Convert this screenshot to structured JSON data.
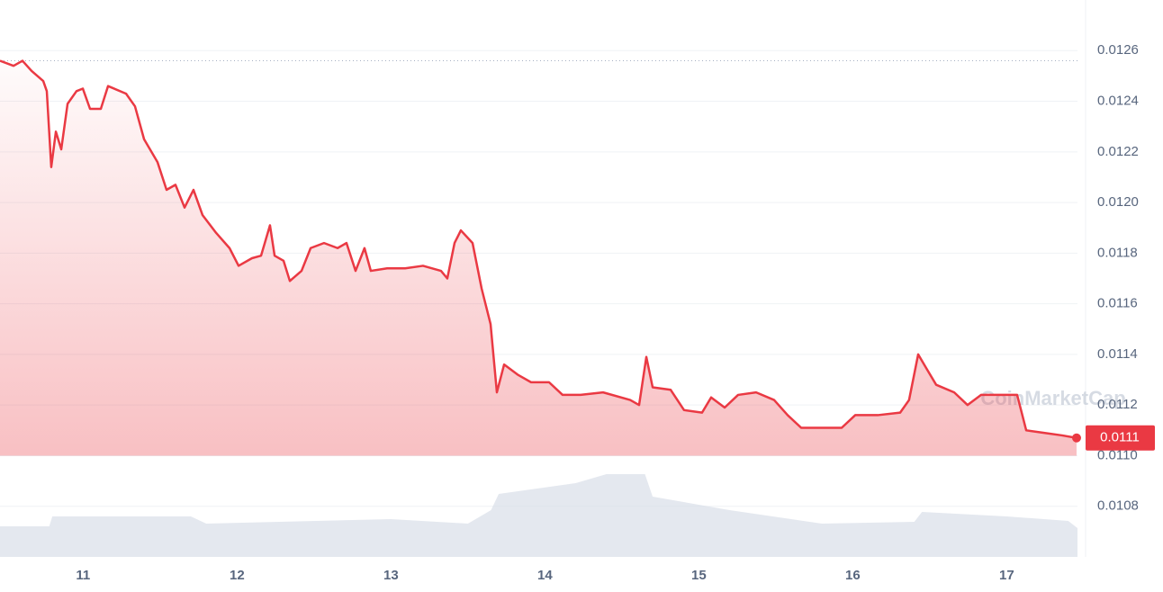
{
  "chart_data": {
    "type": "line",
    "watermark": "CoinMarketCap",
    "xlim": [
      10.46,
      17.46
    ],
    "xticks": [
      11,
      12,
      13,
      14,
      15,
      16,
      17
    ],
    "ylim": [
      0.0106,
      0.0128
    ],
    "yticks": [
      0.0108,
      {
        "value": 0.011,
        "label": "0.0110"
      },
      0.0112,
      0.0114,
      0.0116,
      0.0118,
      {
        "value": 0.012,
        "label": "0.0120"
      },
      0.0122,
      0.0124,
      0.0126
    ],
    "grid": true,
    "series": [
      {
        "name": "Price",
        "color": "#ea3943",
        "x": [
          10.46,
          10.548,
          10.606,
          10.665,
          10.741,
          10.764,
          10.793,
          10.823,
          10.858,
          10.899,
          10.957,
          10.998,
          11.045,
          11.115,
          11.162,
          11.279,
          11.337,
          11.396,
          11.483,
          11.542,
          11.6,
          11.659,
          11.717,
          11.776,
          11.864,
          11.951,
          12.01,
          12.097,
          12.156,
          12.214,
          12.244,
          12.302,
          12.343,
          12.419,
          12.478,
          12.565,
          12.653,
          12.711,
          12.77,
          12.828,
          12.869,
          12.975,
          13.092,
          13.208,
          13.325,
          13.366,
          13.413,
          13.454,
          13.53,
          13.589,
          13.647,
          13.688,
          13.735,
          13.823,
          13.91,
          14.027,
          14.115,
          14.232,
          14.378,
          14.554,
          14.612,
          14.659,
          14.7,
          14.817,
          14.904,
          15.021,
          15.08,
          15.168,
          15.255,
          15.372,
          15.489,
          15.577,
          15.665,
          15.782,
          15.928,
          16.016,
          16.162,
          16.308,
          16.366,
          16.425,
          16.483,
          16.542,
          16.659,
          16.746,
          16.834,
          16.951,
          17.068,
          17.127,
          17.243,
          17.36,
          17.454
        ],
        "values": [
          0.01256,
          0.01254,
          0.01256,
          0.01252,
          0.01248,
          0.01244,
          0.01214,
          0.01228,
          0.01221,
          0.01239,
          0.01244,
          0.01245,
          0.01237,
          0.01237,
          0.01246,
          0.01243,
          0.01238,
          0.01225,
          0.01216,
          0.01205,
          0.01207,
          0.01198,
          0.01205,
          0.01195,
          0.01188,
          0.01182,
          0.01175,
          0.01178,
          0.01179,
          0.01191,
          0.01179,
          0.01177,
          0.01169,
          0.01173,
          0.01182,
          0.01184,
          0.01182,
          0.01184,
          0.01173,
          0.01182,
          0.01173,
          0.01174,
          0.01174,
          0.01175,
          0.01173,
          0.0117,
          0.01184,
          0.01189,
          0.01184,
          0.01166,
          0.01152,
          0.01125,
          0.01136,
          0.01132,
          0.01129,
          0.01129,
          0.01124,
          0.01124,
          0.01125,
          0.01122,
          0.0112,
          0.01139,
          0.01127,
          0.01126,
          0.01118,
          0.01117,
          0.01123,
          0.01119,
          0.01124,
          0.01125,
          0.01122,
          0.01116,
          0.01111,
          0.01111,
          0.01111,
          0.01116,
          0.01116,
          0.01117,
          0.01122,
          0.0114,
          0.01134,
          0.01128,
          0.01125,
          0.0112,
          0.01124,
          0.01124,
          0.01124,
          0.0111,
          0.01109,
          0.01108,
          0.01107
        ],
        "last_label": "0.0111"
      }
    ],
    "volume": {
      "color": "#d9dee8",
      "ylim": [
        0,
        100
      ],
      "x": [
        10.46,
        10.78,
        10.8,
        11.7,
        11.8,
        13.0,
        13.5,
        13.65,
        13.7,
        14.2,
        14.4,
        14.65,
        14.7,
        15.2,
        15.6,
        15.8,
        16.4,
        16.45,
        17.0,
        17.4,
        17.46
      ],
      "values": [
        34,
        34,
        45,
        45,
        37,
        42,
        37,
        52,
        70,
        82,
        92,
        92,
        67,
        52,
        42,
        37,
        39,
        50,
        45,
        40,
        32
      ]
    }
  }
}
